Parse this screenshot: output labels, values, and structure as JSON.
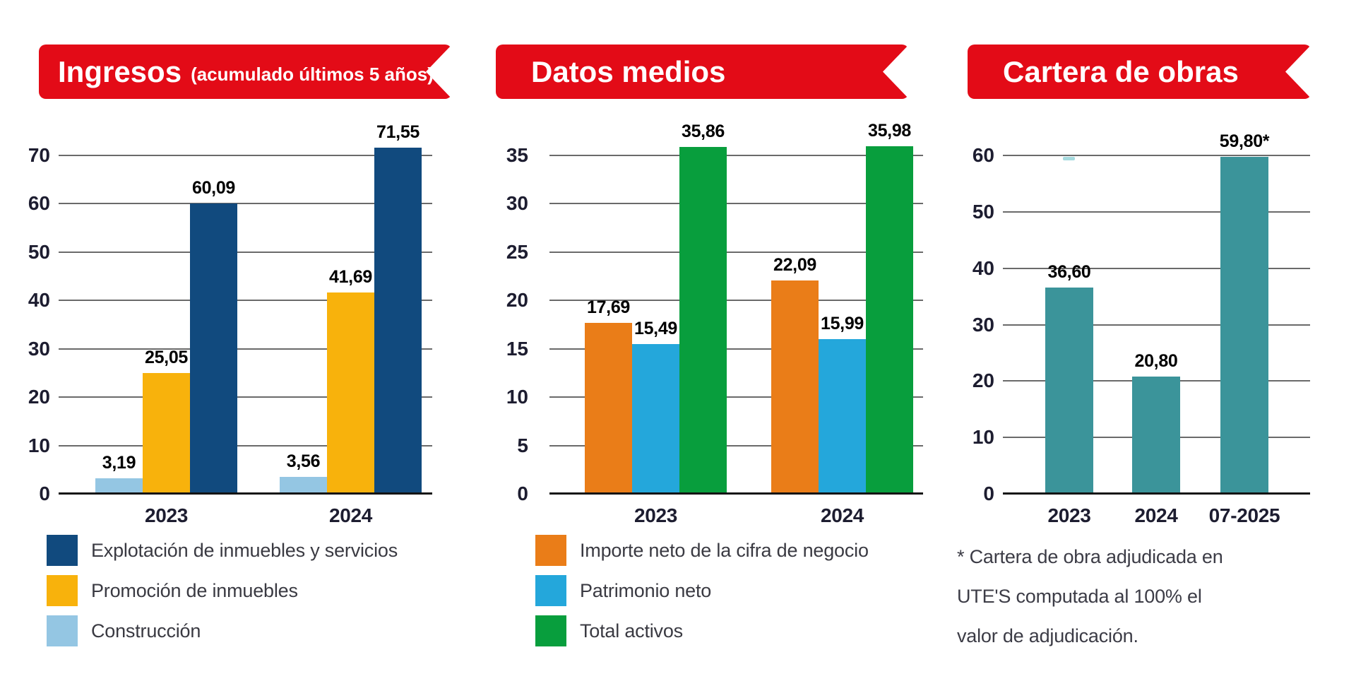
{
  "accent_red": "#e30b17",
  "header_ribbons": [
    {
      "title": "Ingresos",
      "suffix": "(acumulado últimos 5 años)"
    },
    {
      "title": "Datos medios",
      "suffix": ""
    },
    {
      "title": "Cartera de obras",
      "suffix": ""
    }
  ],
  "chart_data": [
    {
      "type": "bar",
      "title": "Ingresos (acumulado últimos 5 años)",
      "categories": [
        "2023",
        "2024"
      ],
      "series": [
        {
          "name": "Construcción",
          "color": "#94c6e3",
          "values": [
            3.19,
            3.56
          ],
          "value_labels": [
            "3,19",
            "3,56"
          ]
        },
        {
          "name": "Promoción de inmuebles",
          "color": "#f8b20c",
          "values": [
            25.05,
            41.69
          ],
          "value_labels": [
            "25,05",
            "41,69"
          ]
        },
        {
          "name": "Explotación de inmuebles y servicios",
          "color": "#114a7e",
          "values": [
            60.09,
            71.55
          ],
          "value_labels": [
            "60,09",
            "71,55"
          ]
        }
      ],
      "ylim": [
        0,
        70
      ],
      "yticks": [
        0,
        10,
        20,
        30,
        40,
        50,
        60,
        70
      ],
      "grid": "horizontal",
      "legend_position": "bottom-left",
      "legend": [
        {
          "label": "Explotación de inmuebles y servicios",
          "color": "#114a7e"
        },
        {
          "label": "Promoción de inmuebles",
          "color": "#f8b20c"
        },
        {
          "label": "Construcción",
          "color": "#94c6e3"
        }
      ]
    },
    {
      "type": "bar",
      "title": "Datos medios",
      "categories": [
        "2023",
        "2024"
      ],
      "series": [
        {
          "name": "Importe neto de la cifra de negocio",
          "color": "#ea7d18",
          "values": [
            17.69,
            22.09
          ],
          "value_labels": [
            "17,69",
            "22,09"
          ]
        },
        {
          "name": "Patrimonio neto",
          "color": "#24a7db",
          "values": [
            15.49,
            15.99
          ],
          "value_labels": [
            "15,49",
            "15,99"
          ]
        },
        {
          "name": "Total activos",
          "color": "#089e3d",
          "values": [
            35.86,
            35.98
          ],
          "value_labels": [
            "35,86",
            "35,98"
          ]
        }
      ],
      "ylim": [
        0,
        35
      ],
      "yticks": [
        0,
        5,
        10,
        15,
        20,
        25,
        30,
        35
      ],
      "grid": "horizontal",
      "legend_position": "bottom-left",
      "legend": [
        {
          "label": "Importe neto de la cifra de negocio",
          "color": "#ea7d18"
        },
        {
          "label": "Patrimonio neto",
          "color": "#24a7db"
        },
        {
          "label": "Total activos",
          "color": "#089e3d"
        }
      ]
    },
    {
      "type": "bar",
      "title": "Cartera de obras",
      "categories": [
        "2023",
        "2024",
        "07-2025"
      ],
      "series": [
        {
          "name": "Cartera de obras",
          "color": "#3b949a",
          "values": [
            36.6,
            20.8,
            59.8
          ],
          "value_labels": [
            "36,60",
            "20,80",
            "59,80*"
          ]
        }
      ],
      "ylim": [
        0,
        60
      ],
      "yticks": [
        0,
        10,
        20,
        30,
        40,
        50,
        60
      ],
      "grid": "horizontal",
      "legend_position": "none"
    }
  ],
  "footnote": {
    "lines": [
      "* Cartera de obra adjudicada en",
      "UTE'S computada al 100% el",
      "valor de adjudicación."
    ]
  }
}
